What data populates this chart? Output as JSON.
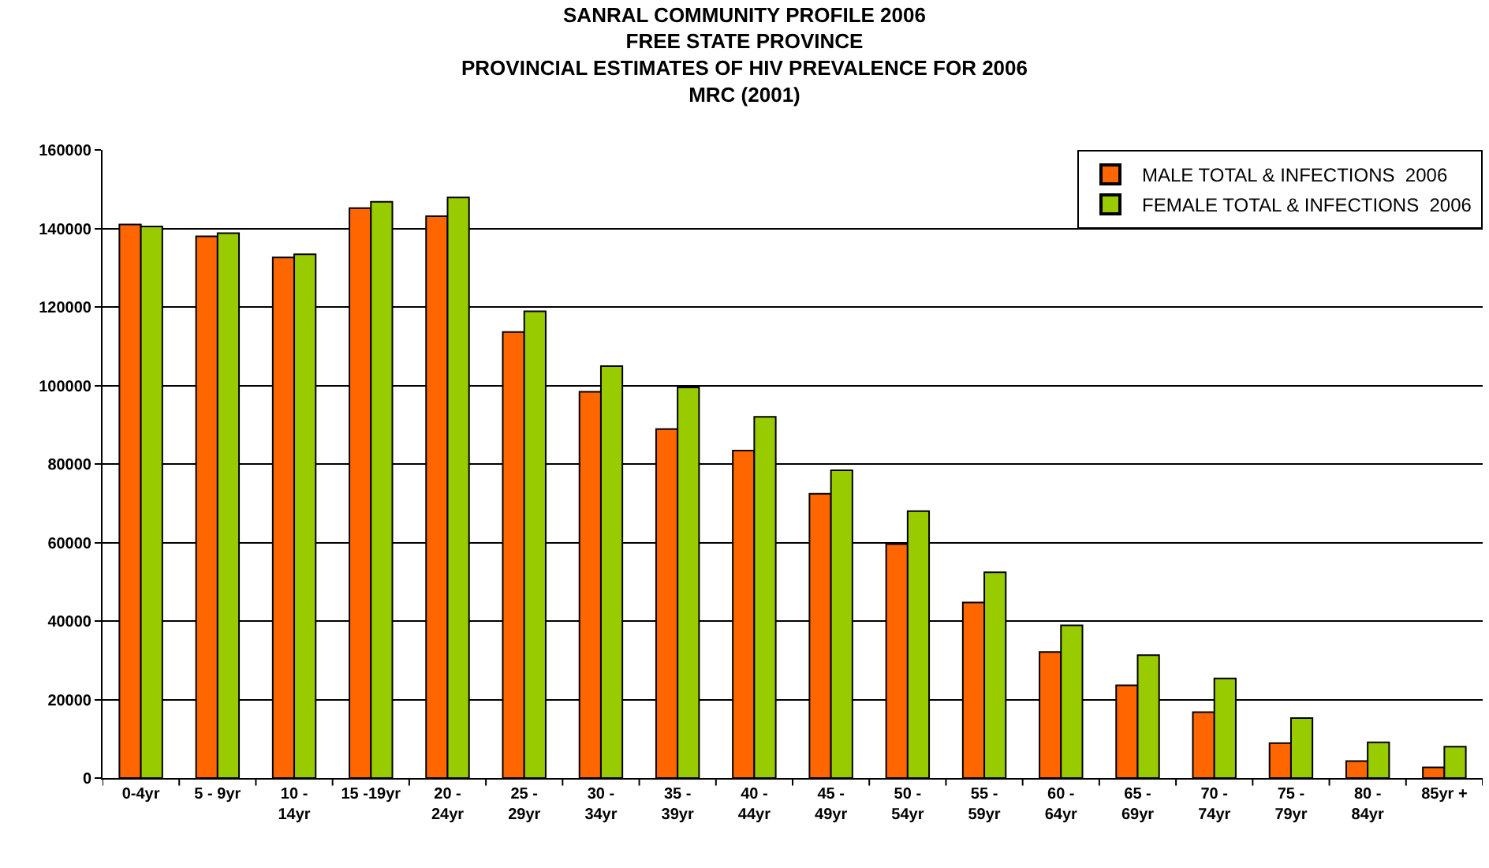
{
  "chart_data": {
    "type": "bar",
    "title": "SANRAL COMMUNITY PROFILE 2006\nFREE STATE PROVINCE\nPROVINCIAL ESTIMATES OF HIV PREVALENCE FOR 2006\nMRC (2001)",
    "categories": [
      "0-4yr",
      "5 - 9yr",
      "10 - 14yr",
      "15 -19yr",
      "20 - 24yr",
      "25 - 29yr",
      "30 - 34yr",
      "35 - 39yr",
      "40 - 44yr",
      "45 - 49yr",
      "50 - 54yr",
      "55 - 59yr",
      "60 - 64yr",
      "65 - 69yr",
      "70 - 74yr",
      "75 - 79yr",
      "80 - 84yr",
      "85yr +"
    ],
    "series": [
      {
        "name": "MALE TOTAL & INFECTIONS  2006",
        "color": "#ff6600",
        "values": [
          141000,
          138000,
          132600,
          145200,
          143100,
          113600,
          98400,
          88900,
          83400,
          72400,
          59600,
          44700,
          32100,
          23600,
          16800,
          8900,
          4300,
          2700
        ]
      },
      {
        "name": "FEMALE TOTAL & INFECTIONS  2006",
        "color": "#99cc00",
        "values": [
          140500,
          138800,
          133400,
          146800,
          147900,
          118900,
          104900,
          99500,
          92000,
          78400,
          68000,
          52400,
          38900,
          31300,
          25400,
          15300,
          9100,
          8000
        ]
      }
    ],
    "ylim": [
      0,
      160000
    ],
    "yticks": [
      0,
      20000,
      40000,
      60000,
      80000,
      100000,
      120000,
      140000,
      160000
    ],
    "grid": "y",
    "legend": "top right"
  }
}
